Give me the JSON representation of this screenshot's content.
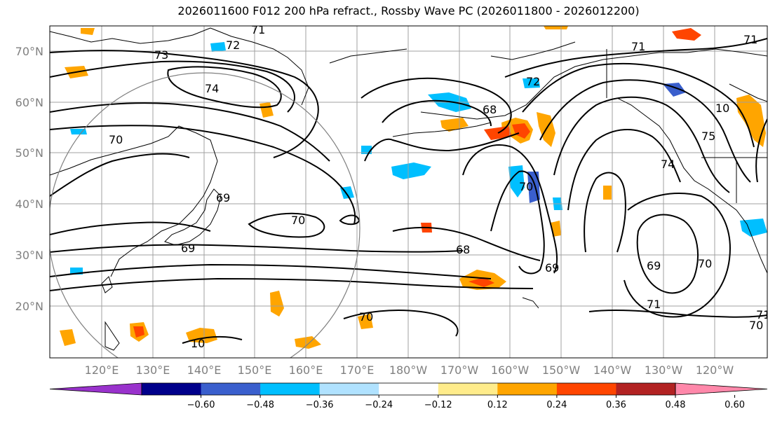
{
  "title": "2026011600 F012 200 hPa refract., Rossby Wave PC (2026011800 - 2026012200)",
  "lat_labels": [
    "70°N",
    "60°N",
    "50°N",
    "40°N",
    "30°N",
    "20°N"
  ],
  "lon_labels": [
    "120°E",
    "130°E",
    "140°E",
    "150°E",
    "160°E",
    "170°E",
    "180°W",
    "170°W",
    "160°W",
    "150°W",
    "140°W",
    "130°W",
    "120°W"
  ],
  "contour_labels": [
    "71",
    "72",
    "73",
    "74",
    "70",
    "69",
    "70",
    "69",
    "70",
    "68",
    "68",
    "69",
    "70",
    "71",
    "71",
    "71",
    "75",
    "74",
    "70",
    "69",
    "70",
    "71",
    "10",
    "10",
    "72"
  ],
  "colorbar": {
    "ticks": [
      "−0.60",
      "−0.48",
      "−0.36",
      "−0.24",
      "−0.12",
      "0.12",
      "0.24",
      "0.36",
      "0.48",
      "0.60"
    ],
    "colors": [
      "#9932cc",
      "#00008b",
      "#3a5fcd",
      "#00bfff",
      "#b0e2ff",
      "#ffffff",
      "#ffec8b",
      "#ffa500",
      "#ff4500",
      "#b22222",
      "#ff88aa"
    ]
  },
  "colors": {
    "land": "#000000",
    "grid": "#a0a0a0",
    "circle": "#808080"
  }
}
